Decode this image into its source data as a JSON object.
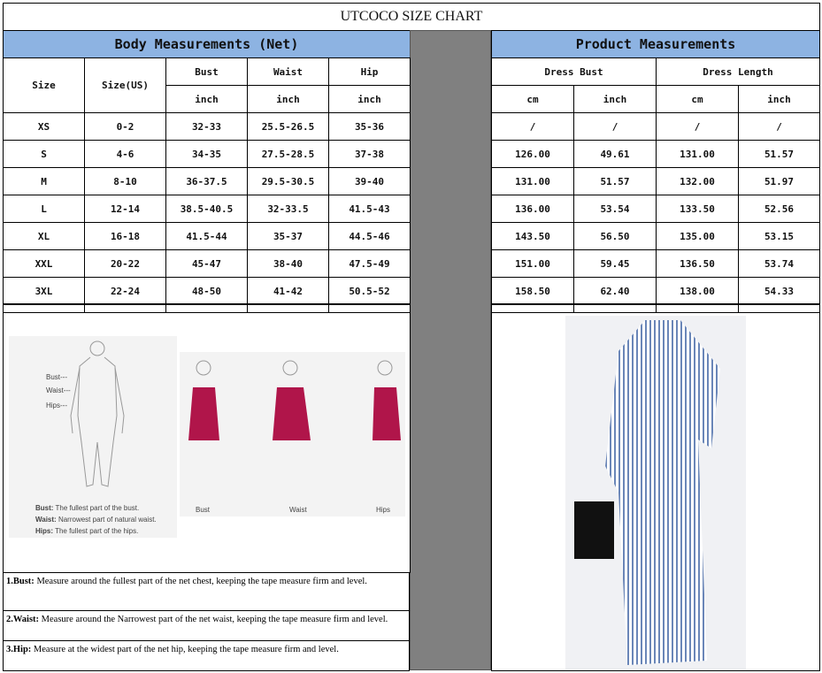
{
  "title": "UTCOCO SIZE CHART",
  "body_header": "Body Measurements (Net)",
  "product_header": "Product Measurements",
  "body_columns": {
    "size": "Size",
    "size_us": "Size(US)",
    "bust": "Bust",
    "waist": "Waist",
    "hip": "Hip",
    "unit": "inch"
  },
  "product_columns": {
    "dress_bust": "Dress Bust",
    "dress_length": "Dress Length",
    "cm": "cm",
    "inch": "inch"
  },
  "rows": [
    [
      "XS",
      "0-2",
      "32-33",
      "25.5-26.5",
      "35-36",
      "/",
      "/",
      "/",
      "/"
    ],
    [
      "S",
      "4-6",
      "34-35",
      "27.5-28.5",
      "37-38",
      "126.00",
      "49.61",
      "131.00",
      "51.57"
    ],
    [
      "M",
      "8-10",
      "36-37.5",
      "29.5-30.5",
      "39-40",
      "131.00",
      "51.57",
      "132.00",
      "51.97"
    ],
    [
      "L",
      "12-14",
      "38.5-40.5",
      "32-33.5",
      "41.5-43",
      "136.00",
      "53.54",
      "133.50",
      "52.56"
    ],
    [
      "XL",
      "16-18",
      "41.5-44",
      "35-37",
      "44.5-46",
      "143.50",
      "56.50",
      "135.00",
      "53.15"
    ],
    [
      "XXL",
      "20-22",
      "45-47",
      "38-40",
      "47.5-49",
      "151.00",
      "59.45",
      "136.50",
      "53.74"
    ],
    [
      "3XL",
      "22-24",
      "48-50",
      "41-42",
      "50.5-52",
      "158.50",
      "62.40",
      "138.00",
      "54.33"
    ]
  ],
  "diagram": {
    "labels": [
      "Bust---",
      "Waist---",
      "Hips---"
    ],
    "legend": [
      {
        "term": "Bust:",
        "text": "The fullest part of the bust."
      },
      {
        "term": "Waist:",
        "text": "Narrowest part of natural waist."
      },
      {
        "term": "Hips:",
        "text": "The fullest part of the hips."
      }
    ],
    "dress_labels": [
      "Bust",
      "Waist",
      "Hips"
    ]
  },
  "notes": [
    {
      "term": "1.Bust:",
      "text": "  Measure around the fullest part of the net chest, keeping the tape  measure firm and level."
    },
    {
      "term": "2.Waist:",
      "text": " Measure around the Narrowest part of the net waist, keeping the tape  measure firm and level."
    },
    {
      "term": "3.Hip:",
      "text": " Measure at the widest part of the net hip, keeping the tape measure firm and level."
    }
  ],
  "colors": {
    "header_blue": "#8db3e2",
    "divider_gray": "#808080",
    "dress_red": "#b0154a",
    "stripe_blue": "#6a86b8"
  }
}
